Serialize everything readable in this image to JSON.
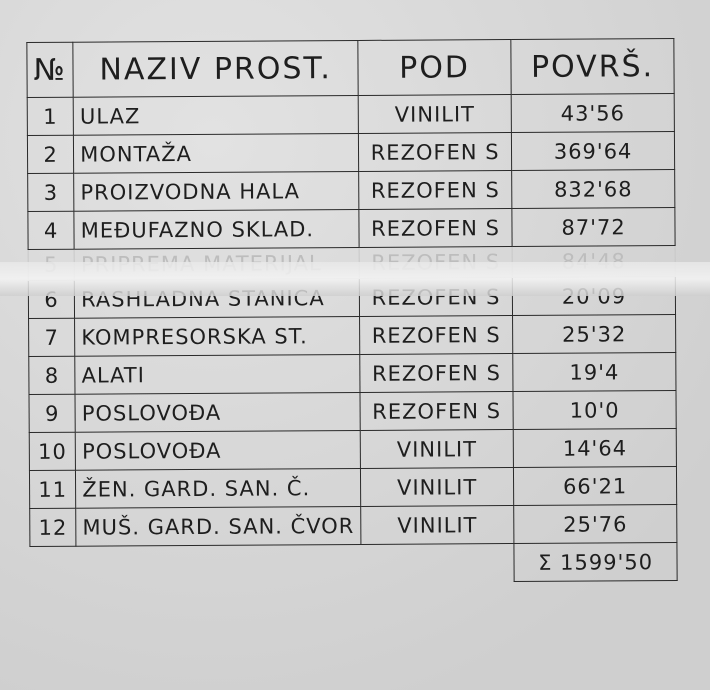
{
  "table": {
    "headers": [
      "№",
      "NAZIV PROST.",
      "POD",
      "POVRŠ."
    ],
    "rows": [
      {
        "no": "1",
        "name": "ULAZ",
        "floor": "VINILIT",
        "area": "43'56"
      },
      {
        "no": "2",
        "name": "MONTAŽA",
        "floor": "REZOFEN S",
        "area": "369'64"
      },
      {
        "no": "3",
        "name": "PROIZVODNA HALA",
        "floor": "REZOFEN S",
        "area": "832'68"
      },
      {
        "no": "4",
        "name": "MEĐUFAZNO SKLAD.",
        "floor": "REZOFEN S",
        "area": "87'72"
      },
      {
        "no": "5",
        "name": "PRIPREMA MATERIJAL",
        "floor": "REZOFEN S",
        "area": "84'48"
      },
      {
        "no": "6",
        "name": "RASHLADNA STANICA",
        "floor": "REZOFEN S",
        "area": "20'09"
      },
      {
        "no": "7",
        "name": "KOMPRESORSKA ST.",
        "floor": "REZOFEN S",
        "area": "25'32"
      },
      {
        "no": "8",
        "name": "ALATI",
        "floor": "REZOFEN S",
        "area": "19'4"
      },
      {
        "no": "9",
        "name": "POSLOVOĐA",
        "floor": "REZOFEN S",
        "area": "10'0"
      },
      {
        "no": "10",
        "name": "POSLOVOĐA",
        "floor": "VINILIT",
        "area": "14'64"
      },
      {
        "no": "11",
        "name": "ŽEN. GARD. SAN. Č.",
        "floor": "VINILIT",
        "area": "66'21"
      },
      {
        "no": "12",
        "name": "MUŠ. GARD. SAN. ČVOR",
        "floor": "VINILIT",
        "area": "25'76"
      }
    ],
    "total": "Σ 1599'50"
  }
}
